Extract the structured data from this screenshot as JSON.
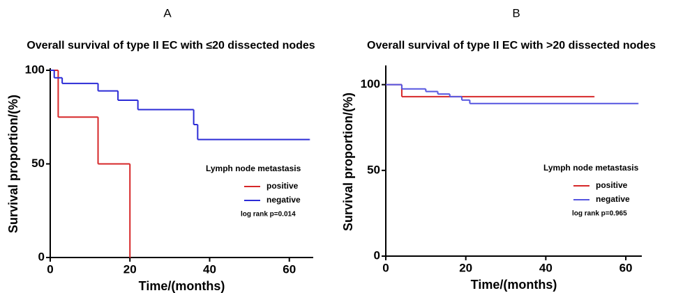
{
  "chart_data": [
    {
      "type": "step",
      "panel_label": "A",
      "title": "Overall survival of type II EC with ≤20 dissected nodes",
      "xlabel": "Time/(months)",
      "ylabel": "Survival proportion/(%)",
      "xlim": [
        0,
        66
      ],
      "ylim": [
        0,
        100
      ],
      "xticks": [
        0,
        20,
        40,
        60
      ],
      "yticks": [
        0,
        50,
        100
      ],
      "legend_title": "Lymph  node metastasis",
      "note": "log rank p=0.014",
      "series": [
        {
          "name": "positive",
          "color": "#d62728",
          "x": [
            0,
            2,
            12,
            20
          ],
          "values": [
            100,
            75,
            50,
            0
          ]
        },
        {
          "name": "negative",
          "color": "#2b2bd6",
          "x": [
            0,
            1,
            3,
            12,
            17,
            22,
            36,
            37,
            65
          ],
          "values": [
            100,
            96,
            93,
            89,
            84,
            79,
            71,
            63,
            63
          ]
        }
      ]
    },
    {
      "type": "step",
      "panel_label": "B",
      "title": "Overall survival of type II EC with >20 dissected nodes",
      "xlabel": "Time/(months)",
      "ylabel": "Survival proportion/(%)",
      "xlim": [
        0,
        64
      ],
      "ylim": [
        0,
        110
      ],
      "xticks": [
        0,
        20,
        40,
        60
      ],
      "yticks": [
        0,
        50,
        100
      ],
      "legend_title": "Lymph  node metastasis",
      "note": "log rank p=0.965",
      "series": [
        {
          "name": "positive",
          "color": "#d62728",
          "x": [
            0,
            4,
            52
          ],
          "values": [
            100,
            93,
            93
          ]
        },
        {
          "name": "negative",
          "color": "#5555e0",
          "x": [
            0,
            4,
            10,
            13,
            16,
            19,
            21,
            63
          ],
          "values": [
            100,
            97.5,
            96,
            94.5,
            93,
            91,
            89,
            89
          ]
        }
      ]
    }
  ]
}
